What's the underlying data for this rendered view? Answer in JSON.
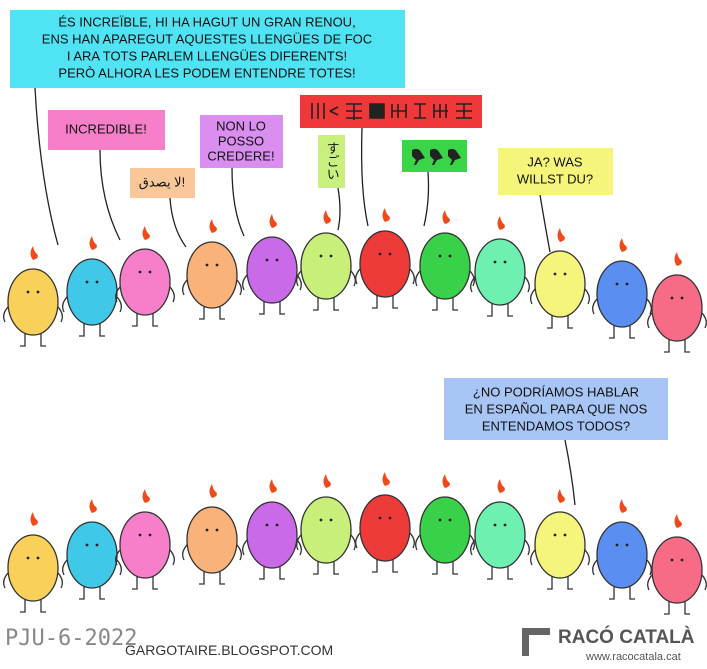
{
  "panels": [
    {
      "bubbles": [
        {
          "lines": [
            "ÉS INCREÏBLE, HI HA HAGUT UN GRAN RENOU,",
            "ENS HAN APAREGUT AQUESTES LLENGÜES DE FOC",
            "I ARA TOTS PARLEM LLENGÜES DIFERENTS!",
            "PERÒ ALHORA LES PODEM ENTENDRE TOTES!"
          ]
        },
        {
          "lines": [
            "INCREDIBLE!"
          ]
        },
        {
          "lines": [
            "لا يصدق!"
          ]
        },
        {
          "lines": [
            "NON LO",
            "POSSO",
            "CREDERE!"
          ]
        },
        {
          "lines": [
            "すごい"
          ]
        },
        {
          "lines": [
            "JA? WAS",
            "WILLST DU?"
          ]
        }
      ]
    },
    {
      "bubbles": [
        {
          "lines": [
            "¿NO PODRÍAMOS HABLAR",
            "EN ESPAÑOL PARA QUE NOS",
            "ENTENDAMOS TODOS?"
          ]
        }
      ]
    }
  ],
  "footer": {
    "signature": "PJU-6-2022",
    "blog": "GARGOTAIRE.BLOGSPOT.COM",
    "brand": "RACÓ CATALÀ",
    "url": "www.racocatala.cat"
  }
}
